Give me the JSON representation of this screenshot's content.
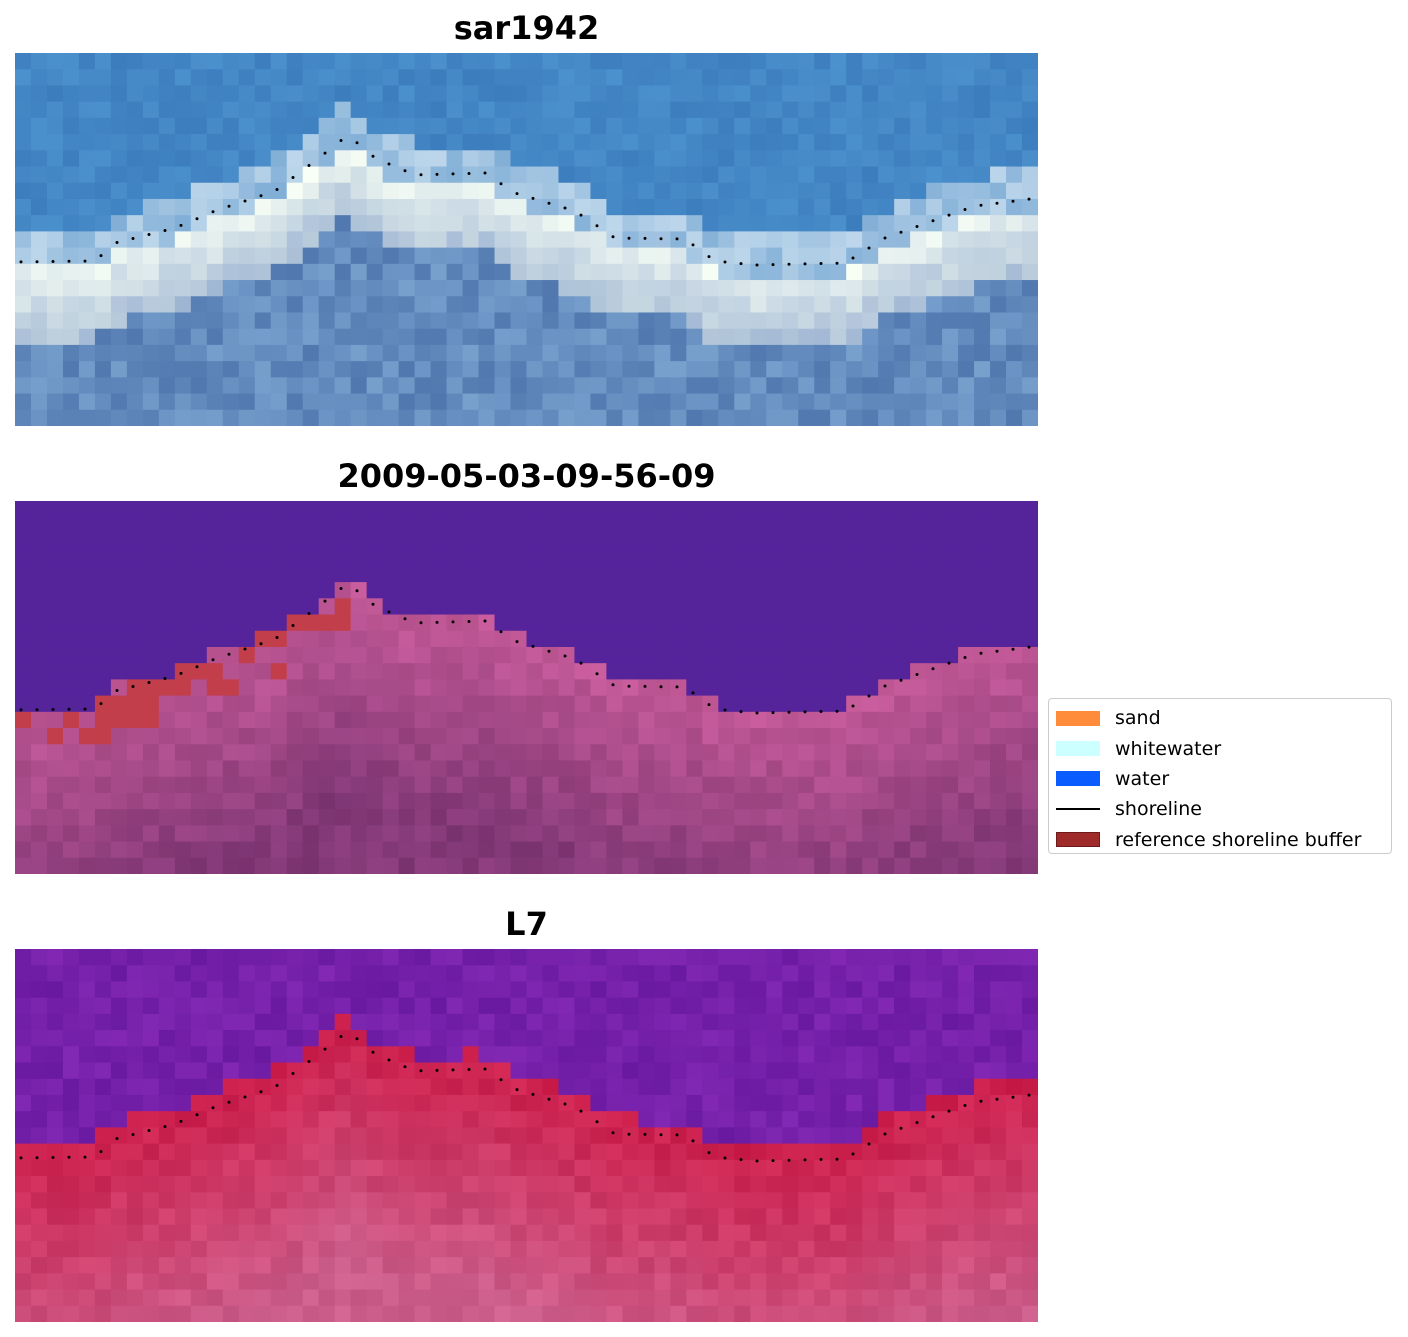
{
  "panels": [
    {
      "title": "sar1942",
      "style": "rgb"
    },
    {
      "title": "2009-05-03-09-56-09",
      "style": "classified"
    },
    {
      "title": "L7",
      "style": "falsecolor"
    }
  ],
  "legend": {
    "items": [
      {
        "label": "sand",
        "color": "#ff8c3a",
        "kind": "patch"
      },
      {
        "label": "whitewater",
        "color": "#ccffff",
        "kind": "patch"
      },
      {
        "label": "water",
        "color": "#0a5cff",
        "kind": "patch"
      },
      {
        "label": "shoreline",
        "color": "#000000",
        "kind": "line"
      },
      {
        "label": "reference shoreline buffer",
        "color": "#9e2a2a",
        "kind": "edged"
      }
    ]
  }
}
